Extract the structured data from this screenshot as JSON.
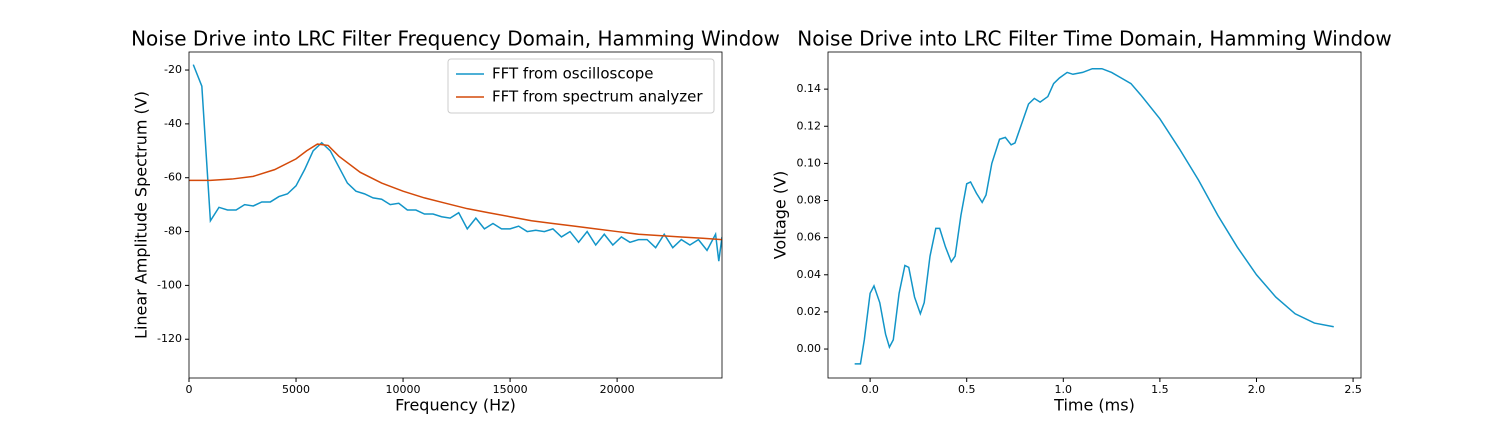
{
  "chart_data": [
    {
      "type": "line",
      "title": "Noise Drive into LRC Filter Frequency Domain, Hamming Window",
      "x_label": "Frequency (Hz)",
      "y_label": "Linear Amplitude Spectrum (V)",
      "xlim": [
        0,
        24900
      ],
      "ylim": [
        -134.4,
        -13.3
      ],
      "xticks": [
        0,
        5000,
        10000,
        15000,
        20000
      ],
      "yticks": [
        -120,
        -100,
        -80,
        -60,
        -40,
        -20
      ],
      "legend": "upper right",
      "series": [
        {
          "name": "FFT from oscilloscope",
          "color": "#1295c8",
          "x": [
            200,
            600,
            1000,
            1400,
            1800,
            2200,
            2600,
            3000,
            3400,
            3800,
            4200,
            4600,
            5000,
            5400,
            5800,
            6200,
            6600,
            7000,
            7400,
            7800,
            8200,
            8600,
            9000,
            9400,
            9800,
            10200,
            10600,
            11000,
            11400,
            11800,
            12200,
            12600,
            13000,
            13400,
            13800,
            14200,
            14600,
            15000,
            15400,
            15800,
            16200,
            16600,
            17000,
            17400,
            17800,
            18200,
            18600,
            19000,
            19400,
            19800,
            20200,
            20600,
            21000,
            21400,
            21800,
            22200,
            22600,
            23000,
            23400,
            23800,
            24200,
            24600,
            24750,
            24900
          ],
          "values": [
            -18,
            -26,
            -76,
            -71,
            -72,
            -72,
            -70,
            -70.5,
            -69,
            -69,
            -67,
            -66,
            -63,
            -57,
            -50,
            -47,
            -50,
            -56,
            -62,
            -65,
            -66,
            -67.5,
            -68,
            -70,
            -69.5,
            -72,
            -72,
            -73.5,
            -73.5,
            -74.5,
            -75,
            -73,
            -79,
            -75,
            -79,
            -77,
            -79,
            -79,
            -78,
            -80,
            -79.5,
            -80,
            -79,
            -82,
            -80,
            -84,
            -80,
            -85,
            -81,
            -85,
            -82,
            -84,
            -83,
            -83,
            -86,
            -81,
            -86,
            -83,
            -85,
            -83,
            -87,
            -81,
            -91,
            -82
          ]
        },
        {
          "name": "FFT from spectrum analyzer",
          "color": "#d44a0a",
          "x": [
            0,
            1000,
            2000,
            3000,
            4000,
            5000,
            5500,
            6000,
            6500,
            7000,
            8000,
            9000,
            10000,
            11000,
            12000,
            13000,
            14000,
            15000,
            16000,
            17000,
            18000,
            19000,
            20000,
            21000,
            22000,
            23000,
            24000,
            24900
          ],
          "values": [
            -61,
            -61,
            -60.5,
            -59.5,
            -57,
            -53,
            -50,
            -47.5,
            -48,
            -52,
            -58,
            -62,
            -65,
            -67.5,
            -69.5,
            -71.5,
            -73,
            -74.5,
            -76,
            -77,
            -78,
            -79,
            -80,
            -81,
            -81.5,
            -82,
            -82.5,
            -83
          ]
        }
      ]
    },
    {
      "type": "line",
      "title": "Noise Drive into LRC Filter Time Domain, Hamming Window",
      "x_label": "Time (ms)",
      "y_label": "Voltage (V)",
      "xlim": [
        -0.218,
        2.541
      ],
      "ylim": [
        -0.0156,
        0.16
      ],
      "xticks": [
        {
          "value": 0,
          "label": "0.0"
        },
        {
          "value": 0.5,
          "label": "0.5"
        },
        {
          "value": 1,
          "label": "1.0"
        },
        {
          "value": 1.5,
          "label": "1.5"
        },
        {
          "value": 2,
          "label": "2.0"
        },
        {
          "value": 2.5,
          "label": "2.5"
        }
      ],
      "yticks": [
        {
          "value": 0,
          "label": "0.00"
        },
        {
          "value": 0.02,
          "label": "0.02"
        },
        {
          "value": 0.04,
          "label": "0.04"
        },
        {
          "value": 0.06,
          "label": "0.06"
        },
        {
          "value": 0.08,
          "label": "0.08"
        },
        {
          "value": 0.1,
          "label": "0.10"
        },
        {
          "value": 0.12,
          "label": "0.12"
        },
        {
          "value": 0.14,
          "label": "0.14"
        }
      ],
      "series": [
        {
          "color": "#1295c8",
          "x": [
            -0.08,
            -0.05,
            -0.03,
            0,
            0.02,
            0.05,
            0.08,
            0.1,
            0.12,
            0.15,
            0.18,
            0.2,
            0.23,
            0.26,
            0.28,
            0.31,
            0.34,
            0.36,
            0.39,
            0.42,
            0.44,
            0.47,
            0.5,
            0.52,
            0.55,
            0.58,
            0.6,
            0.63,
            0.67,
            0.7,
            0.73,
            0.75,
            0.78,
            0.82,
            0.85,
            0.88,
            0.92,
            0.95,
            0.98,
            1.02,
            1.05,
            1.1,
            1.15,
            1.2,
            1.25,
            1.3,
            1.35,
            1.4,
            1.5,
            1.6,
            1.7,
            1.8,
            1.9,
            2,
            2.1,
            2.2,
            2.3,
            2.4
          ],
          "values": [
            -0.008,
            -0.008,
            0.005,
            0.03,
            0.034,
            0.025,
            0.008,
            0.001,
            0.005,
            0.03,
            0.045,
            0.044,
            0.028,
            0.019,
            0.025,
            0.05,
            0.065,
            0.065,
            0.055,
            0.047,
            0.05,
            0.072,
            0.089,
            0.09,
            0.084,
            0.079,
            0.083,
            0.1,
            0.113,
            0.114,
            0.11,
            0.111,
            0.12,
            0.132,
            0.135,
            0.133,
            0.136,
            0.143,
            0.146,
            0.149,
            0.148,
            0.149,
            0.151,
            0.151,
            0.149,
            0.146,
            0.143,
            0.137,
            0.124,
            0.108,
            0.091,
            0.072,
            0.055,
            0.04,
            0.028,
            0.019,
            0.014,
            0.012
          ]
        }
      ]
    }
  ]
}
